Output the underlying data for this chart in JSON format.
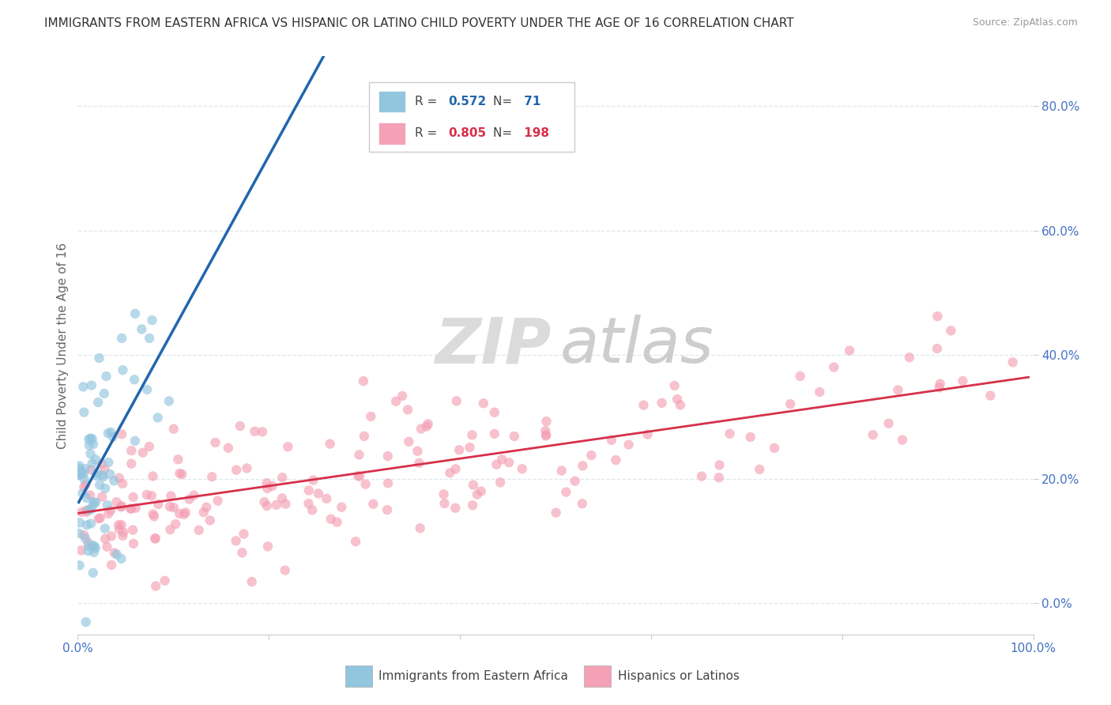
{
  "title": "IMMIGRANTS FROM EASTERN AFRICA VS HISPANIC OR LATINO CHILD POVERTY UNDER THE AGE OF 16 CORRELATION CHART",
  "source": "Source: ZipAtlas.com",
  "ylabel": "Child Poverty Under the Age of 16",
  "xlabel": "",
  "xlim": [
    0.0,
    1.0
  ],
  "ylim": [
    -0.05,
    0.88
  ],
  "yticks": [
    0.0,
    0.2,
    0.4,
    0.6,
    0.8
  ],
  "ytick_labels": [
    "0.0%",
    "20.0%",
    "40.0%",
    "60.0%",
    "80.0%"
  ],
  "xticks": [
    0.0,
    0.2,
    0.4,
    0.6,
    0.8,
    1.0
  ],
  "xtick_labels_show": [
    "0.0%",
    "",
    "",
    "",
    "",
    "100.0%"
  ],
  "blue_R": 0.572,
  "blue_N": 71,
  "pink_R": 0.805,
  "pink_N": 198,
  "blue_color": "#92c5de",
  "pink_color": "#f4a0b5",
  "blue_line_color": "#2166ac",
  "pink_line_color": "#d6304a",
  "ytick_color": "#4472c4",
  "xtick_color": "#4472c4",
  "watermark_zip_color": "#d0d0d0",
  "watermark_atlas_color": "#c8c8c8",
  "background_color": "#ffffff",
  "grid_color": "#dde8f0",
  "title_fontsize": 11,
  "source_fontsize": 9,
  "legend_label_blue": "Immigrants from Eastern Africa",
  "legend_label_pink": "Hispanics or Latinos"
}
